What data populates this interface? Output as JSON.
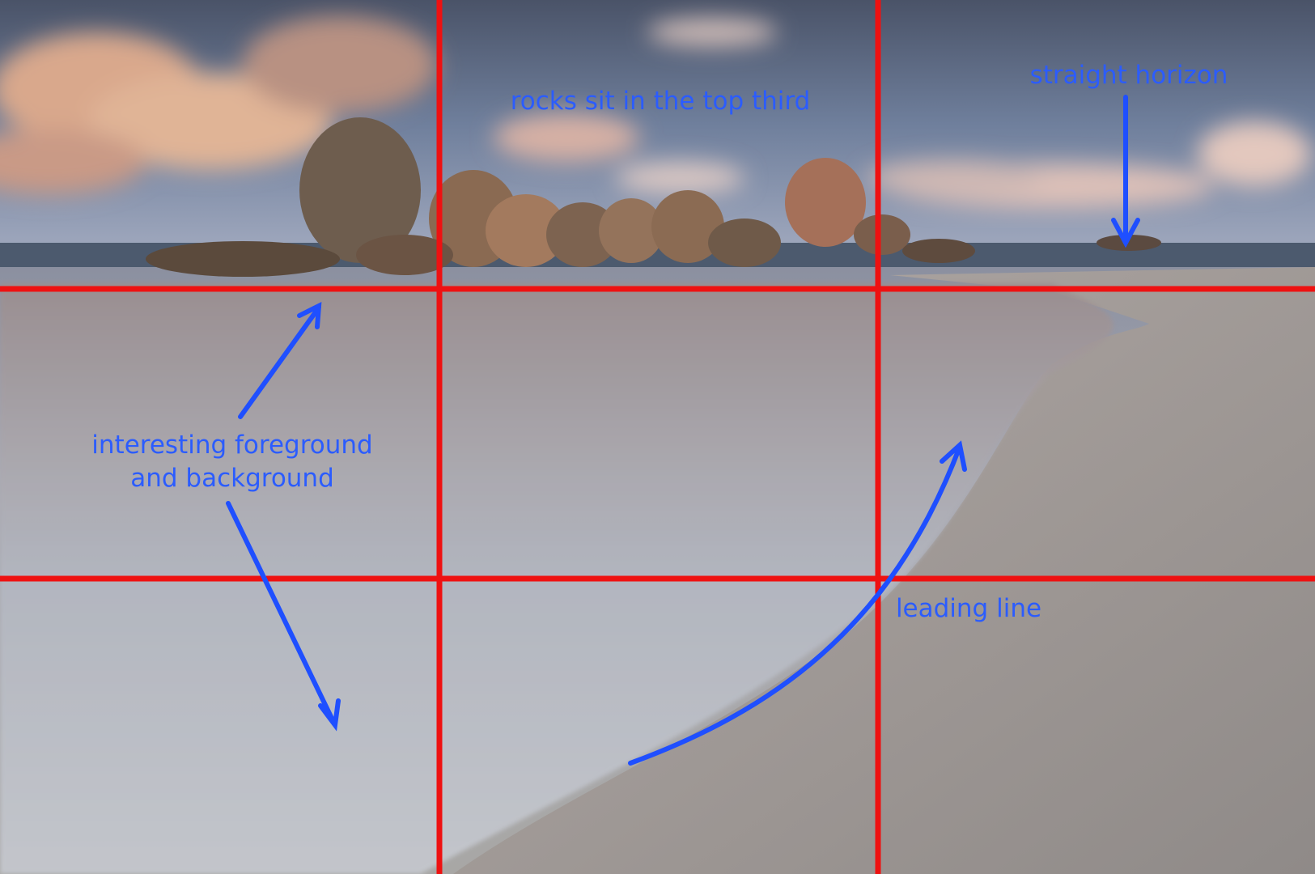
{
  "annotations": {
    "top_third": "rocks sit in the top third",
    "horizon": "straight horizon",
    "foreground": [
      "interesting foreground",
      "and background"
    ],
    "leading_line": "leading line"
  }
}
